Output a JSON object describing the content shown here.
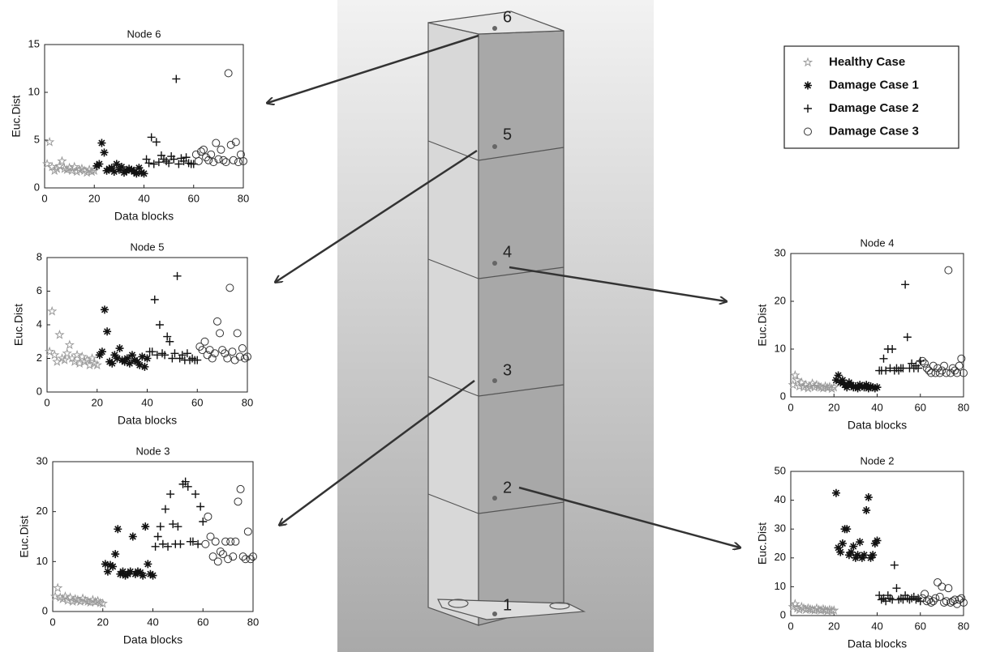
{
  "tower": {
    "nodes": [
      "6",
      "5",
      "4",
      "3",
      "2",
      "1"
    ]
  },
  "legend": {
    "names": [
      "Healthy Case",
      "Damage Case 1",
      "Damage Case 2",
      "Damage Case 3"
    ]
  },
  "chart_data": [
    {
      "type": "scatter",
      "title": "Node 6",
      "xlabel": "Data blocks",
      "ylabel": "Euc.Dist",
      "xlim": [
        0,
        80
      ],
      "ylim": [
        0,
        15
      ],
      "xticks": [
        0,
        20,
        40,
        60,
        80
      ],
      "yticks": [
        0,
        5,
        10,
        15
      ],
      "series": [
        {
          "marker": "star",
          "color": "#9a9a9a",
          "x": [
            1,
            2,
            3,
            4,
            5,
            6,
            7,
            8,
            9,
            10,
            11,
            12,
            13,
            14,
            15,
            16,
            17,
            18,
            19,
            20
          ],
          "values": [
            2.5,
            4.8,
            2.2,
            1.8,
            2.0,
            2.3,
            2.8,
            2.0,
            1.9,
            2.1,
            1.8,
            2.2,
            1.7,
            1.9,
            2.0,
            1.8,
            1.6,
            1.9,
            1.7,
            1.8
          ]
        },
        {
          "marker": "asterisk",
          "color": "#111111",
          "x": [
            21,
            22,
            23,
            24,
            25,
            26,
            27,
            28,
            29,
            30,
            31,
            32,
            33,
            34,
            35,
            36,
            37,
            38,
            39,
            40
          ],
          "values": [
            2.3,
            2.5,
            4.7,
            3.7,
            1.8,
            2.0,
            2.1,
            1.7,
            2.5,
            1.9,
            2.2,
            1.6,
            1.8,
            2.0,
            1.9,
            1.7,
            1.5,
            2.1,
            1.6,
            1.5
          ]
        },
        {
          "marker": "plus",
          "color": "#111111",
          "x": [
            41,
            42,
            43,
            44,
            45,
            46,
            47,
            48,
            49,
            50,
            51,
            52,
            53,
            54,
            55,
            56,
            57,
            58,
            59,
            60
          ],
          "values": [
            3.0,
            2.6,
            5.3,
            2.5,
            4.8,
            2.7,
            3.4,
            3.0,
            2.8,
            2.6,
            3.3,
            3.0,
            11.4,
            2.5,
            3.1,
            2.8,
            3.2,
            2.6,
            2.5,
            2.5
          ]
        },
        {
          "marker": "circle",
          "color": "#333333",
          "x": [
            61,
            62,
            63,
            64,
            65,
            66,
            67,
            68,
            69,
            70,
            71,
            72,
            73,
            74,
            75,
            76,
            77,
            78,
            79,
            80
          ],
          "values": [
            3.5,
            2.8,
            3.8,
            4.0,
            3.2,
            2.9,
            3.5,
            2.7,
            4.7,
            3.0,
            4.0,
            2.9,
            2.7,
            12.0,
            4.5,
            2.9,
            4.8,
            2.7,
            3.5,
            2.8
          ]
        }
      ]
    },
    {
      "type": "scatter",
      "title": "Node 5",
      "xlabel": "Data blocks",
      "ylabel": "Euc.Dist",
      "xlim": [
        0,
        80
      ],
      "ylim": [
        0,
        8
      ],
      "xticks": [
        0,
        20,
        40,
        60,
        80
      ],
      "yticks": [
        0,
        2,
        4,
        6,
        8
      ],
      "series": [
        {
          "marker": "star",
          "color": "#9a9a9a",
          "x": [
            1,
            2,
            3,
            4,
            5,
            6,
            7,
            8,
            9,
            10,
            11,
            12,
            13,
            14,
            15,
            16,
            17,
            18,
            19,
            20
          ],
          "values": [
            2.4,
            4.8,
            2.2,
            1.8,
            3.4,
            2.0,
            1.9,
            2.3,
            2.8,
            2.0,
            1.8,
            2.2,
            1.7,
            2.1,
            1.8,
            1.9,
            1.6,
            2.0,
            1.7,
            1.6
          ]
        },
        {
          "marker": "asterisk",
          "color": "#111111",
          "x": [
            21,
            22,
            23,
            24,
            25,
            26,
            27,
            28,
            29,
            30,
            31,
            32,
            33,
            34,
            35,
            36,
            37,
            38,
            39,
            40
          ],
          "values": [
            2.2,
            2.4,
            4.9,
            3.6,
            1.8,
            1.7,
            2.2,
            2.0,
            2.6,
            1.9,
            1.8,
            2.0,
            1.7,
            2.2,
            1.9,
            1.8,
            1.6,
            2.1,
            1.5,
            2.0
          ]
        },
        {
          "marker": "plus",
          "color": "#111111",
          "x": [
            41,
            42,
            43,
            44,
            45,
            46,
            47,
            48,
            49,
            50,
            51,
            52,
            53,
            54,
            55,
            56,
            57,
            58,
            59,
            60
          ],
          "values": [
            2.4,
            2.4,
            5.5,
            2.2,
            4.0,
            2.3,
            2.2,
            3.3,
            3.0,
            2.0,
            2.3,
            6.9,
            2.0,
            2.2,
            1.9,
            2.3,
            1.9,
            2.0,
            1.9,
            1.9
          ]
        },
        {
          "marker": "circle",
          "color": "#333333",
          "x": [
            61,
            62,
            63,
            64,
            65,
            66,
            67,
            68,
            69,
            70,
            71,
            72,
            73,
            74,
            75,
            76,
            77,
            78,
            79,
            80
          ],
          "values": [
            2.7,
            2.5,
            3.0,
            2.2,
            2.5,
            2.0,
            2.3,
            4.2,
            3.5,
            2.5,
            2.3,
            2.0,
            6.2,
            2.4,
            1.9,
            3.5,
            2.1,
            2.6,
            2.0,
            2.1
          ]
        }
      ]
    },
    {
      "type": "scatter",
      "title": "Node 3",
      "xlabel": "Data blocks",
      "ylabel": "Euc.Dist",
      "xlim": [
        0,
        80
      ],
      "ylim": [
        0,
        30
      ],
      "xticks": [
        0,
        20,
        40,
        60,
        80
      ],
      "yticks": [
        0,
        10,
        20,
        30
      ],
      "series": [
        {
          "marker": "star",
          "color": "#9a9a9a",
          "x": [
            1,
            2,
            3,
            4,
            5,
            6,
            7,
            8,
            9,
            10,
            11,
            12,
            13,
            14,
            15,
            16,
            17,
            18,
            19,
            20
          ],
          "values": [
            3.0,
            4.7,
            2.8,
            2.5,
            3.0,
            2.2,
            2.8,
            2.0,
            2.5,
            2.3,
            2.0,
            2.6,
            2.2,
            2.0,
            1.8,
            2.3,
            1.9,
            2.1,
            1.7,
            1.6
          ]
        },
        {
          "marker": "asterisk",
          "color": "#111111",
          "x": [
            21,
            22,
            23,
            24,
            25,
            26,
            27,
            28,
            29,
            30,
            31,
            32,
            33,
            34,
            35,
            36,
            37,
            38,
            39,
            40
          ],
          "values": [
            9.5,
            8,
            9.3,
            9,
            11.5,
            16.5,
            7.5,
            8,
            7.2,
            7.5,
            8,
            15,
            7.5,
            8,
            7.8,
            7.2,
            17,
            9.5,
            7.5,
            7.2
          ]
        },
        {
          "marker": "plus",
          "color": "#111111",
          "x": [
            41,
            42,
            43,
            44,
            45,
            46,
            47,
            48,
            49,
            50,
            51,
            52,
            53,
            54,
            55,
            56,
            57,
            58,
            59,
            60
          ],
          "values": [
            13,
            15,
            17,
            13.5,
            20.5,
            13,
            23.5,
            17.5,
            13.5,
            17,
            13.5,
            25.5,
            26,
            25,
            14,
            14,
            23.5,
            13.5,
            21,
            18
          ]
        },
        {
          "marker": "circle",
          "color": "#333333",
          "x": [
            61,
            62,
            63,
            64,
            65,
            66,
            67,
            68,
            69,
            70,
            71,
            72,
            73,
            74,
            75,
            76,
            77,
            78,
            79,
            80
          ],
          "values": [
            13.5,
            19,
            15,
            11,
            14,
            10,
            12,
            11.5,
            14,
            10.5,
            14,
            11,
            14,
            22,
            24.5,
            11,
            10.5,
            16,
            10.5,
            11
          ]
        }
      ]
    },
    {
      "type": "scatter",
      "title": "Node 4",
      "xlabel": "Data blocks",
      "ylabel": "Euc.Dist",
      "xlim": [
        0,
        80
      ],
      "ylim": [
        0,
        30
      ],
      "xticks": [
        0,
        20,
        40,
        60,
        80
      ],
      "yticks": [
        0,
        10,
        20,
        30
      ],
      "series": [
        {
          "marker": "star",
          "color": "#9a9a9a",
          "x": [
            1,
            2,
            3,
            4,
            5,
            6,
            7,
            8,
            9,
            10,
            11,
            12,
            13,
            14,
            15,
            16,
            17,
            18,
            19,
            20
          ],
          "values": [
            2.5,
            4.5,
            3.5,
            2.2,
            3.0,
            2.0,
            2.5,
            1.8,
            2.2,
            2.8,
            2.0,
            2.5,
            2.2,
            2.0,
            1.8,
            2.2,
            1.9,
            2.1,
            1.7,
            2.0
          ]
        },
        {
          "marker": "asterisk",
          "color": "#111111",
          "x": [
            21,
            22,
            23,
            24,
            25,
            26,
            27,
            28,
            29,
            30,
            31,
            32,
            33,
            34,
            35,
            36,
            37,
            38,
            39,
            40
          ],
          "values": [
            3.5,
            4.5,
            3.0,
            3.5,
            2.5,
            2.0,
            3.0,
            2.5,
            2.0,
            2.2,
            1.8,
            2.5,
            2.2,
            2.0,
            2.5,
            1.8,
            2.2,
            2.0,
            1.8,
            2.0
          ]
        },
        {
          "marker": "plus",
          "color": "#111111",
          "x": [
            41,
            42,
            43,
            44,
            45,
            46,
            47,
            48,
            49,
            50,
            51,
            52,
            53,
            54,
            55,
            56,
            57,
            58,
            59,
            60
          ],
          "values": [
            5.5,
            5.5,
            8,
            5.5,
            10,
            6,
            10,
            5.5,
            6,
            5.5,
            6,
            6,
            23.5,
            12.5,
            6,
            7,
            6,
            6.5,
            6,
            7.5
          ]
        },
        {
          "marker": "circle",
          "color": "#333333",
          "x": [
            61,
            62,
            63,
            64,
            65,
            66,
            67,
            68,
            69,
            70,
            71,
            72,
            73,
            74,
            75,
            76,
            77,
            78,
            79,
            80
          ],
          "values": [
            7.5,
            7,
            6,
            5.5,
            5,
            6.5,
            5,
            6,
            5,
            5.5,
            6.5,
            5,
            26.5,
            5,
            6,
            5.5,
            5,
            6.5,
            8,
            5
          ]
        }
      ]
    },
    {
      "type": "scatter",
      "title": "Node 2",
      "xlabel": "Data blocks",
      "ylabel": "Euc.Dist",
      "xlim": [
        0,
        80
      ],
      "ylim": [
        0,
        50
      ],
      "xticks": [
        0,
        20,
        40,
        60,
        80
      ],
      "yticks": [
        0,
        10,
        20,
        30,
        40,
        50
      ],
      "series": [
        {
          "marker": "star",
          "color": "#9a9a9a",
          "x": [
            1,
            2,
            3,
            4,
            5,
            6,
            7,
            8,
            9,
            10,
            11,
            12,
            13,
            14,
            15,
            16,
            17,
            18,
            19,
            20
          ],
          "values": [
            3,
            4,
            2.5,
            2,
            3,
            2.5,
            2,
            2.5,
            2.2,
            2,
            1.8,
            2.5,
            2,
            1.8,
            2.2,
            1.9,
            1.6,
            2,
            1.7,
            1.8
          ]
        },
        {
          "marker": "asterisk",
          "color": "#111111",
          "x": [
            21,
            22,
            23,
            24,
            25,
            26,
            27,
            28,
            29,
            30,
            31,
            32,
            33,
            34,
            35,
            36,
            37,
            38,
            39,
            40
          ],
          "values": [
            42.5,
            23.5,
            22,
            25,
            30,
            30,
            21,
            22,
            24,
            20,
            21,
            25.5,
            20,
            21,
            36.5,
            41,
            20,
            21,
            25,
            26
          ]
        },
        {
          "marker": "plus",
          "color": "#111111",
          "x": [
            41,
            42,
            43,
            44,
            45,
            46,
            47,
            48,
            49,
            50,
            51,
            52,
            53,
            54,
            55,
            56,
            57,
            58,
            59,
            60
          ],
          "values": [
            7,
            5.5,
            6,
            5,
            7,
            6,
            5.5,
            17.5,
            9.5,
            5.5,
            6,
            5.5,
            7,
            6,
            5.5,
            6,
            6.5,
            5.5,
            6,
            5
          ]
        },
        {
          "marker": "circle",
          "color": "#333333",
          "x": [
            61,
            62,
            63,
            64,
            65,
            66,
            67,
            68,
            69,
            70,
            71,
            72,
            73,
            74,
            75,
            76,
            77,
            78,
            79,
            80
          ],
          "values": [
            6,
            7.5,
            5,
            5.5,
            4.5,
            5,
            6,
            11.5,
            6.5,
            10,
            4.5,
            5,
            9.5,
            4.5,
            5,
            5.5,
            4,
            5.5,
            6,
            4.5
          ]
        }
      ]
    }
  ]
}
